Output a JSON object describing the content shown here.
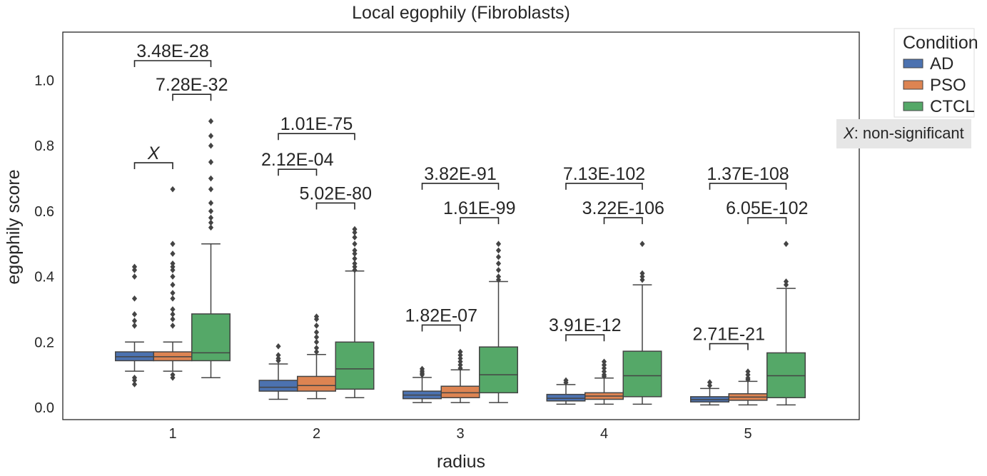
{
  "chart_data": {
    "type": "box",
    "title": "Local egophily (Fibroblasts)",
    "xlabel": "radius",
    "ylabel": "egophily score",
    "categories": [
      "1",
      "2",
      "3",
      "4",
      "5"
    ],
    "ylim": [
      -0.04,
      1.15
    ],
    "yticks": [
      "0.0",
      "0.2",
      "0.4",
      "0.6",
      "0.8",
      "1.0"
    ],
    "ytick_values": [
      0.0,
      0.2,
      0.4,
      0.6,
      0.8,
      1.0
    ],
    "grid": false,
    "legend": {
      "title": "Condition",
      "placement": "outside-top-right"
    },
    "series": [
      {
        "name": "AD",
        "color": "#4c72b0",
        "boxes": [
          {
            "q1": 0.143,
            "median": 0.155,
            "q3": 0.17,
            "whislo": 0.111,
            "whishi": 0.2,
            "fliers": [
              0.071,
              0.083,
              0.091,
              0.25,
              0.265,
              0.285,
              0.333,
              0.4,
              0.42,
              0.43
            ]
          },
          {
            "q1": 0.05,
            "median": 0.062,
            "q3": 0.083,
            "whislo": 0.025,
            "whishi": 0.133,
            "fliers": [
              0.143,
              0.15,
              0.16,
              0.187
            ]
          },
          {
            "q1": 0.027,
            "median": 0.038,
            "q3": 0.05,
            "whislo": 0.015,
            "whishi": 0.092,
            "fliers": [
              0.1,
              0.105,
              0.111,
              0.118
            ]
          },
          {
            "q1": 0.02,
            "median": 0.028,
            "q3": 0.04,
            "whislo": 0.01,
            "whishi": 0.07,
            "fliers": [
              0.076,
              0.083
            ]
          },
          {
            "q1": 0.017,
            "median": 0.024,
            "q3": 0.033,
            "whislo": 0.008,
            "whishi": 0.058,
            "fliers": [
              0.067,
              0.077
            ]
          }
        ]
      },
      {
        "name": "PSO",
        "color": "#dd8452",
        "boxes": [
          {
            "q1": 0.143,
            "median": 0.155,
            "q3": 0.17,
            "whislo": 0.111,
            "whishi": 0.2,
            "fliers": [
              0.091,
              0.1,
              0.25,
              0.27,
              0.285,
              0.3,
              0.333,
              0.35,
              0.375,
              0.4,
              0.42,
              0.43,
              0.44,
              0.47,
              0.5,
              0.667
            ]
          },
          {
            "q1": 0.05,
            "median": 0.067,
            "q3": 0.095,
            "whislo": 0.027,
            "whishi": 0.162,
            "fliers": [
              0.17,
              0.182,
              0.2,
              0.215,
              0.23,
              0.25,
              0.27,
              0.278
            ]
          },
          {
            "q1": 0.03,
            "median": 0.045,
            "q3": 0.065,
            "whislo": 0.015,
            "whishi": 0.115,
            "fliers": [
              0.12,
              0.13,
              0.14,
              0.15,
              0.16,
              0.17
            ]
          },
          {
            "q1": 0.025,
            "median": 0.035,
            "q3": 0.045,
            "whislo": 0.01,
            "whishi": 0.09,
            "fliers": [
              0.095,
              0.1,
              0.11,
              0.12,
              0.13,
              0.14
            ]
          },
          {
            "q1": 0.022,
            "median": 0.032,
            "q3": 0.042,
            "whislo": 0.008,
            "whishi": 0.08,
            "fliers": [
              0.085,
              0.09,
              0.1,
              0.11
            ]
          }
        ]
      },
      {
        "name": "CTCL",
        "color": "#55a868",
        "boxes": [
          {
            "q1": 0.143,
            "median": 0.167,
            "q3": 0.286,
            "whislo": 0.091,
            "whishi": 0.5,
            "fliers": [
              0.55,
              0.565,
              0.58,
              0.6,
              0.625,
              0.667,
              0.7,
              0.75,
              0.8,
              0.83,
              0.875
            ]
          },
          {
            "q1": 0.056,
            "median": 0.118,
            "q3": 0.2,
            "whislo": 0.03,
            "whishi": 0.417,
            "fliers": [
              0.42,
              0.43,
              0.44,
              0.455,
              0.47,
              0.48,
              0.5,
              0.52,
              0.535,
              0.545
            ]
          },
          {
            "q1": 0.045,
            "median": 0.1,
            "q3": 0.185,
            "whislo": 0.015,
            "whishi": 0.385,
            "fliers": [
              0.39,
              0.4,
              0.42,
              0.44,
              0.46,
              0.48,
              0.5
            ]
          },
          {
            "q1": 0.033,
            "median": 0.097,
            "q3": 0.172,
            "whislo": 0.01,
            "whishi": 0.375,
            "fliers": [
              0.39,
              0.4,
              0.41,
              0.5
            ]
          },
          {
            "q1": 0.03,
            "median": 0.097,
            "q3": 0.167,
            "whislo": 0.008,
            "whishi": 0.364,
            "fliers": [
              0.375,
              0.385,
              0.5
            ]
          }
        ]
      }
    ],
    "annotations": [
      {
        "category": 0,
        "from": "AD",
        "to": "PSO",
        "y": 0.748,
        "label": "X"
      },
      {
        "category": 0,
        "from": "AD",
        "to": "CTCL",
        "y": 1.06,
        "label": "3.48E-28"
      },
      {
        "category": 0,
        "from": "PSO",
        "to": "CTCL",
        "y": 0.957,
        "label": "7.28E-32"
      },
      {
        "category": 1,
        "from": "AD",
        "to": "PSO",
        "y": 0.728,
        "label": "2.12E-04"
      },
      {
        "category": 1,
        "from": "AD",
        "to": "CTCL",
        "y": 0.837,
        "label": "1.01E-75"
      },
      {
        "category": 1,
        "from": "PSO",
        "to": "CTCL",
        "y": 0.625,
        "label": "5.02E-80"
      },
      {
        "category": 2,
        "from": "AD",
        "to": "PSO",
        "y": 0.252,
        "label": "1.82E-07"
      },
      {
        "category": 2,
        "from": "AD",
        "to": "CTCL",
        "y": 0.685,
        "label": "3.82E-91"
      },
      {
        "category": 2,
        "from": "PSO",
        "to": "CTCL",
        "y": 0.58,
        "label": "1.61E-99"
      },
      {
        "category": 3,
        "from": "AD",
        "to": "PSO",
        "y": 0.222,
        "label": "3.91E-12"
      },
      {
        "category": 3,
        "from": "AD",
        "to": "CTCL",
        "y": 0.685,
        "label": "7.13E-102"
      },
      {
        "category": 3,
        "from": "PSO",
        "to": "CTCL",
        "y": 0.58,
        "label": "3.22E-106"
      },
      {
        "category": 4,
        "from": "AD",
        "to": "PSO",
        "y": 0.195,
        "label": "2.71E-21"
      },
      {
        "category": 4,
        "from": "AD",
        "to": "CTCL",
        "y": 0.685,
        "label": "1.37E-108"
      },
      {
        "category": 4,
        "from": "PSO",
        "to": "CTCL",
        "y": 0.58,
        "label": "6.05E-102"
      }
    ],
    "note": {
      "symbol": "X",
      "text": ": non-significant"
    }
  }
}
